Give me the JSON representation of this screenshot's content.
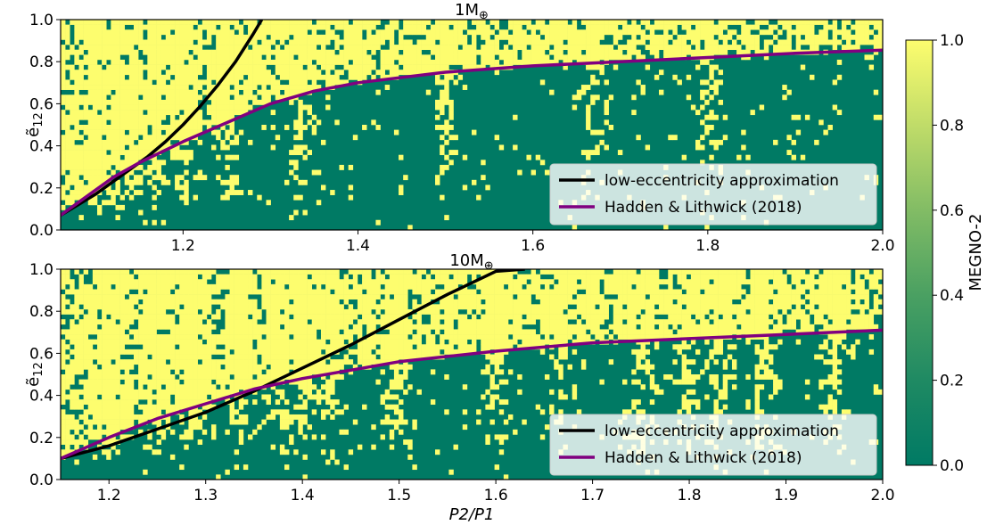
{
  "colors": {
    "stable": "#007a64",
    "chaotic": "#fdfd6e",
    "low_ecc_line": "#000000",
    "hl_line": "#800080"
  },
  "chart_data": [
    {
      "type": "heatmap",
      "title": "1M",
      "title_subscript": "⊕",
      "xlabel": "",
      "ylabel": "ẽ",
      "ylabel_subscript": "12",
      "xlim": [
        1.06,
        2.0
      ],
      "ylim": [
        0.0,
        1.0
      ],
      "xticks": [
        1.2,
        1.4,
        1.6,
        1.8,
        2.0
      ],
      "xtick_labels": [
        "1.2",
        "1.4",
        "1.6",
        "1.8",
        "2.0"
      ],
      "yticks": [
        0.0,
        0.2,
        0.4,
        0.6,
        0.8,
        1.0
      ],
      "ytick_labels": [
        "0.0",
        "0.2",
        "0.4",
        "0.6",
        "0.8",
        "1.0"
      ],
      "legend_position": "lower-right",
      "series": [
        {
          "name": "low-eccentricity approximation",
          "x": [
            1.06,
            1.08,
            1.1,
            1.12,
            1.14,
            1.16,
            1.18,
            1.2,
            1.22,
            1.24,
            1.26,
            1.28,
            1.29
          ],
          "y": [
            0.07,
            0.12,
            0.17,
            0.23,
            0.29,
            0.35,
            0.42,
            0.5,
            0.59,
            0.69,
            0.8,
            0.93,
            1.0
          ]
        },
        {
          "name": "Hadden & Lithwick (2018)",
          "x": [
            1.06,
            1.08,
            1.1,
            1.12,
            1.15,
            1.2,
            1.25,
            1.3,
            1.35,
            1.4,
            1.5,
            1.6,
            1.7,
            1.8,
            1.9,
            2.0
          ],
          "y": [
            0.07,
            0.13,
            0.19,
            0.25,
            0.32,
            0.42,
            0.51,
            0.6,
            0.66,
            0.7,
            0.75,
            0.78,
            0.8,
            0.82,
            0.84,
            0.855
          ]
        }
      ]
    },
    {
      "type": "heatmap",
      "title": "10M",
      "title_subscript": "⊕",
      "xlabel": "P2/P1",
      "ylabel": "ẽ",
      "ylabel_subscript": "12",
      "xlim": [
        1.15,
        2.0
      ],
      "ylim": [
        0.0,
        1.0
      ],
      "xticks": [
        1.2,
        1.3,
        1.4,
        1.5,
        1.6,
        1.7,
        1.8,
        1.9,
        2.0
      ],
      "xtick_labels": [
        "1.2",
        "1.3",
        "1.4",
        "1.5",
        "1.6",
        "1.7",
        "1.8",
        "1.9",
        "2.0"
      ],
      "yticks": [
        0.0,
        0.2,
        0.4,
        0.6,
        0.8,
        1.0
      ],
      "ytick_labels": [
        "0.0",
        "0.2",
        "0.4",
        "0.6",
        "0.8",
        "1.0"
      ],
      "legend_position": "lower-right",
      "series": [
        {
          "name": "low-eccentricity approximation",
          "x": [
            1.15,
            1.2,
            1.25,
            1.3,
            1.35,
            1.4,
            1.45,
            1.5,
            1.55,
            1.6,
            1.63
          ],
          "y": [
            0.1,
            0.16,
            0.24,
            0.32,
            0.42,
            0.53,
            0.64,
            0.76,
            0.88,
            0.99,
            1.0
          ]
        },
        {
          "name": "Hadden & Lithwick (2018)",
          "x": [
            1.15,
            1.2,
            1.25,
            1.3,
            1.35,
            1.4,
            1.45,
            1.5,
            1.6,
            1.7,
            1.8,
            1.9,
            2.0
          ],
          "y": [
            0.1,
            0.2,
            0.29,
            0.36,
            0.43,
            0.48,
            0.52,
            0.56,
            0.61,
            0.65,
            0.67,
            0.69,
            0.71
          ]
        }
      ]
    }
  ],
  "colorbar": {
    "label": "MEGNO-2",
    "ticks": [
      0.0,
      0.2,
      0.4,
      0.6,
      0.8,
      1.0
    ],
    "tick_labels": [
      "0.0",
      "0.2",
      "0.4",
      "0.6",
      "0.8",
      "1.0"
    ],
    "range": [
      0.0,
      1.0
    ]
  }
}
